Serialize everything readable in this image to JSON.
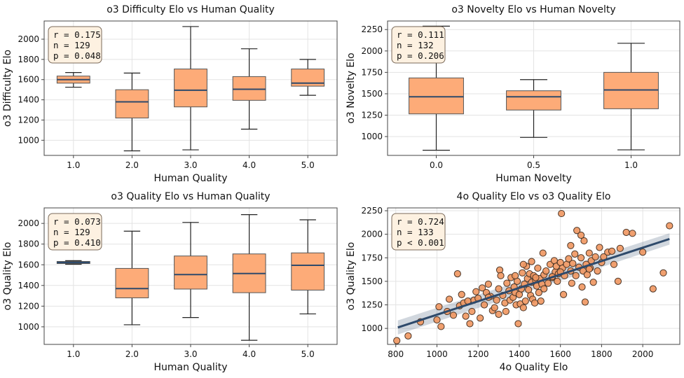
{
  "chart_data": [
    {
      "type": "box",
      "title": "o3 Difficulty Elo vs Human Quality",
      "xlabel": "Human Quality",
      "ylabel": "o3 Difficulty Elo",
      "ylim": [
        850,
        2180
      ],
      "yticks": [
        1000,
        1200,
        1400,
        1600,
        1800,
        2000
      ],
      "categories": [
        "1.0",
        "2.0",
        "3.0",
        "4.0",
        "5.0"
      ],
      "boxes": [
        {
          "whislo": 1525,
          "q1": 1565,
          "med": 1600,
          "q3": 1635,
          "whishi": 1670
        },
        {
          "whislo": 895,
          "q1": 1220,
          "med": 1380,
          "q3": 1500,
          "whishi": 1665
        },
        {
          "whislo": 905,
          "q1": 1330,
          "med": 1495,
          "q3": 1705,
          "whishi": 2125
        },
        {
          "whislo": 1110,
          "q1": 1395,
          "med": 1505,
          "q3": 1630,
          "whishi": 1905
        },
        {
          "whislo": 1445,
          "q1": 1535,
          "med": 1565,
          "q3": 1705,
          "whishi": 1800
        }
      ],
      "stats": [
        "r = 0.175",
        "n = 129",
        "p = 0.048"
      ]
    },
    {
      "type": "box",
      "title": "o3 Novelty Elo vs Human Novelty",
      "xlabel": "Human Novelty",
      "ylabel": "o3 Novelty Elo",
      "ylim": [
        780,
        2350
      ],
      "yticks": [
        1000,
        1250,
        1500,
        1750,
        2000,
        2250
      ],
      "categories": [
        "0.0",
        "0.5",
        "1.0"
      ],
      "boxes": [
        {
          "whislo": 840,
          "q1": 1265,
          "med": 1465,
          "q3": 1685,
          "whishi": 2290
        },
        {
          "whislo": 990,
          "q1": 1310,
          "med": 1465,
          "q3": 1535,
          "whishi": 1665
        },
        {
          "whislo": 845,
          "q1": 1325,
          "med": 1545,
          "q3": 1750,
          "whishi": 2090
        }
      ],
      "stats": [
        "r = 0.111",
        "n = 132",
        "p = 0.206"
      ]
    },
    {
      "type": "box",
      "title": "o3 Quality Elo vs Human Quality",
      "xlabel": "Human Quality",
      "ylabel": "o3 Quality Elo",
      "ylim": [
        830,
        2150
      ],
      "yticks": [
        1000,
        1200,
        1400,
        1600,
        1800,
        2000
      ],
      "categories": [
        "1.0",
        "2.0",
        "3.0",
        "4.0",
        "5.0"
      ],
      "boxes": [
        {
          "whislo": 1605,
          "q1": 1612,
          "med": 1622,
          "q3": 1632,
          "whishi": 1640
        },
        {
          "whislo": 1020,
          "q1": 1280,
          "med": 1370,
          "q3": 1565,
          "whishi": 1925
        },
        {
          "whislo": 1090,
          "q1": 1365,
          "med": 1505,
          "q3": 1685,
          "whishi": 2010
        },
        {
          "whislo": 870,
          "q1": 1330,
          "med": 1515,
          "q3": 1705,
          "whishi": 2085
        },
        {
          "whislo": 1125,
          "q1": 1355,
          "med": 1595,
          "q3": 1715,
          "whishi": 2035
        }
      ],
      "stats": [
        "r = 0.073",
        "n = 129",
        "p = 0.410"
      ]
    },
    {
      "type": "scatter",
      "title": "4o Quality Elo vs o3 Quality Elo",
      "xlabel": "4o Quality Elo",
      "ylabel": "o3 Quality Elo",
      "xlim": [
        760,
        2180
      ],
      "ylim": [
        830,
        2280
      ],
      "xticks": [
        800,
        1000,
        1200,
        1400,
        1600,
        1800,
        2000
      ],
      "yticks": [
        1000,
        1250,
        1500,
        1750,
        2000,
        2250
      ],
      "fit": {
        "x": [
          810,
          2130
        ],
        "y": [
          1010,
          1950
        ],
        "band_lo": [
          935,
          1890
        ],
        "band_hi": [
          1085,
          2010
        ]
      },
      "points": [
        [
          805,
          870
        ],
        [
          860,
          920
        ],
        [
          920,
          1070
        ],
        [
          1000,
          1090
        ],
        [
          1010,
          1230
        ],
        [
          1020,
          1020
        ],
        [
          1050,
          1180
        ],
        [
          1060,
          1310
        ],
        [
          1080,
          1140
        ],
        [
          1100,
          1580
        ],
        [
          1110,
          1240
        ],
        [
          1120,
          1360
        ],
        [
          1130,
          1270
        ],
        [
          1140,
          1130
        ],
        [
          1150,
          1290
        ],
        [
          1160,
          1050
        ],
        [
          1170,
          1180
        ],
        [
          1180,
          1300
        ],
        [
          1190,
          1390
        ],
        [
          1200,
          1320
        ],
        [
          1210,
          1110
        ],
        [
          1220,
          1430
        ],
        [
          1230,
          1250
        ],
        [
          1240,
          1380
        ],
        [
          1250,
          1470
        ],
        [
          1260,
          1340
        ],
        [
          1270,
          1190
        ],
        [
          1280,
          1220
        ],
        [
          1290,
          1300
        ],
        [
          1300,
          1420
        ],
        [
          1305,
          1620
        ],
        [
          1310,
          1560
        ],
        [
          1320,
          1350
        ],
        [
          1330,
          1270
        ],
        [
          1335,
          1180
        ],
        [
          1340,
          1480
        ],
        [
          1350,
          1400
        ],
        [
          1355,
          1300
        ],
        [
          1360,
          1540
        ],
        [
          1370,
          1330
        ],
        [
          1375,
          1440
        ],
        [
          1380,
          1380
        ],
        [
          1385,
          1250
        ],
        [
          1390,
          1500
        ],
        [
          1395,
          1050
        ],
        [
          1400,
          1360
        ],
        [
          1405,
          1260
        ],
        [
          1410,
          1420
        ],
        [
          1415,
          1590
        ],
        [
          1420,
          1220
        ],
        [
          1425,
          1470
        ],
        [
          1430,
          1290
        ],
        [
          1435,
          1660
        ],
        [
          1440,
          1530
        ],
        [
          1445,
          1410
        ],
        [
          1450,
          1580
        ],
        [
          1455,
          1350
        ],
        [
          1460,
          1490
        ],
        [
          1465,
          1310
        ],
        [
          1470,
          1560
        ],
        [
          1475,
          1270
        ],
        [
          1480,
          1510
        ],
        [
          1485,
          1450
        ],
        [
          1490,
          1640
        ],
        [
          1495,
          1380
        ],
        [
          1500,
          1530
        ],
        [
          1505,
          1290
        ],
        [
          1510,
          1470
        ],
        [
          1515,
          1800
        ],
        [
          1520,
          1570
        ],
        [
          1530,
          1610
        ],
        [
          1540,
          1480
        ],
        [
          1550,
          1680
        ],
        [
          1560,
          1540
        ],
        [
          1570,
          1720
        ],
        [
          1575,
          1600
        ],
        [
          1580,
          1660
        ],
        [
          1585,
          1500
        ],
        [
          1590,
          1580
        ],
        [
          1600,
          1700
        ],
        [
          1605,
          2220
        ],
        [
          1610,
          1640
        ],
        [
          1615,
          1360
        ],
        [
          1620,
          1560
        ],
        [
          1630,
          1680
        ],
        [
          1640,
          1740
        ],
        [
          1650,
          1610
        ],
        [
          1655,
          1480
        ],
        [
          1660,
          1690
        ],
        [
          1670,
          1790
        ],
        [
          1675,
          1560
        ],
        [
          1680,
          2040
        ],
        [
          1690,
          1650
        ],
        [
          1700,
          1750
        ],
        [
          1705,
          1440
        ],
        [
          1710,
          1610
        ],
        [
          1715,
          1930
        ],
        [
          1720,
          1280
        ],
        [
          1725,
          1680
        ],
        [
          1730,
          1570
        ],
        [
          1740,
          1800
        ],
        [
          1745,
          1640
        ],
        [
          1750,
          1720
        ],
        [
          1760,
          1490
        ],
        [
          1770,
          1760
        ],
        [
          1780,
          1610
        ],
        [
          1790,
          1860
        ],
        [
          1800,
          1700
        ],
        [
          1810,
          1760
        ],
        [
          1830,
          1810
        ],
        [
          1850,
          1820
        ],
        [
          1860,
          1680
        ],
        [
          1880,
          1500
        ],
        [
          1890,
          1850
        ],
        [
          1920,
          2020
        ],
        [
          1950,
          2010
        ],
        [
          2000,
          1810
        ],
        [
          2050,
          1420
        ],
        [
          2100,
          1590
        ],
        [
          2130,
          2090
        ],
        [
          1700,
          1990
        ],
        [
          1250,
          1330
        ],
        [
          1650,
          1880
        ],
        [
          1560,
          1550
        ],
        [
          1460,
          1710
        ],
        [
          1380,
          1560
        ],
        [
          1300,
          1150
        ],
        [
          1520,
          1420
        ],
        [
          1600,
          1600
        ],
        [
          1740,
          1630
        ],
        [
          1480,
          1540
        ],
        [
          1420,
          1680
        ]
      ],
      "stats": [
        "r = 0.724",
        "n = 133",
        "p < 0.001"
      ]
    }
  ]
}
